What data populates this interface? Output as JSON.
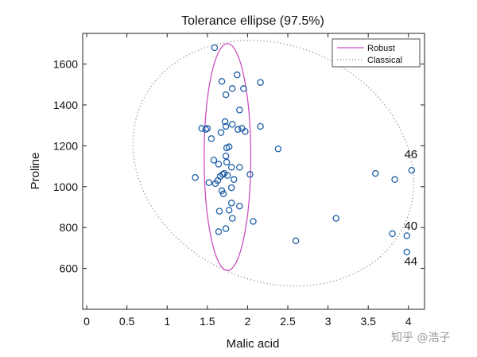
{
  "chart_data": {
    "type": "scatter",
    "title": "Tolerance ellipse (97.5%)",
    "xlabel": "Malic acid",
    "ylabel": "Proline",
    "xlim": [
      -0.05,
      4.2
    ],
    "ylim": [
      400,
      1750
    ],
    "x_ticks": [
      0,
      0.5,
      1,
      1.5,
      2,
      2.5,
      3,
      3.5,
      4
    ],
    "y_ticks": [
      600,
      800,
      1000,
      1200,
      1400,
      1600
    ],
    "x_tick_labels": [
      "0",
      "0.5",
      "1",
      "1.5",
      "2",
      "2.5",
      "3",
      "3.5",
      "4"
    ],
    "y_tick_labels": [
      "600",
      "800",
      "1000",
      "1200",
      "1400",
      "1600"
    ],
    "grid": false,
    "legend_position": "top-right",
    "legend": [
      {
        "label": "Robust",
        "style": "solid",
        "color": "#cc4fbf"
      },
      {
        "label": "Classical",
        "style": "dotted",
        "color": "#888888"
      }
    ],
    "marker_color": "#1f5fa8",
    "points": [
      {
        "x": 1.59,
        "y": 1680
      },
      {
        "x": 1.68,
        "y": 1515
      },
      {
        "x": 1.81,
        "y": 1480
      },
      {
        "x": 1.73,
        "y": 1450
      },
      {
        "x": 1.87,
        "y": 1547
      },
      {
        "x": 1.95,
        "y": 1480
      },
      {
        "x": 2.16,
        "y": 1510
      },
      {
        "x": 1.9,
        "y": 1375
      },
      {
        "x": 1.43,
        "y": 1285
      },
      {
        "x": 1.48,
        "y": 1280
      },
      {
        "x": 1.5,
        "y": 1285
      },
      {
        "x": 1.55,
        "y": 1235
      },
      {
        "x": 1.67,
        "y": 1265
      },
      {
        "x": 1.73,
        "y": 1295
      },
      {
        "x": 1.72,
        "y": 1318
      },
      {
        "x": 1.81,
        "y": 1305
      },
      {
        "x": 1.88,
        "y": 1280
      },
      {
        "x": 1.93,
        "y": 1285
      },
      {
        "x": 1.97,
        "y": 1270
      },
      {
        "x": 2.16,
        "y": 1295
      },
      {
        "x": 1.74,
        "y": 1190
      },
      {
        "x": 1.77,
        "y": 1195
      },
      {
        "x": 2.38,
        "y": 1185
      },
      {
        "x": 1.73,
        "y": 1150
      },
      {
        "x": 1.58,
        "y": 1130
      },
      {
        "x": 1.64,
        "y": 1110
      },
      {
        "x": 1.74,
        "y": 1120
      },
      {
        "x": 1.8,
        "y": 1095
      },
      {
        "x": 1.9,
        "y": 1095
      },
      {
        "x": 2.03,
        "y": 1060
      },
      {
        "x": 1.35,
        "y": 1045
      },
      {
        "x": 1.52,
        "y": 1020
      },
      {
        "x": 1.63,
        "y": 1030
      },
      {
        "x": 1.66,
        "y": 1050
      },
      {
        "x": 1.69,
        "y": 1060
      },
      {
        "x": 1.71,
        "y": 1065
      },
      {
        "x": 1.75,
        "y": 1055
      },
      {
        "x": 1.83,
        "y": 1035
      },
      {
        "x": 1.6,
        "y": 1015
      },
      {
        "x": 1.68,
        "y": 980
      },
      {
        "x": 1.7,
        "y": 965
      },
      {
        "x": 1.8,
        "y": 995
      },
      {
        "x": 1.8,
        "y": 920
      },
      {
        "x": 1.9,
        "y": 905
      },
      {
        "x": 1.65,
        "y": 880
      },
      {
        "x": 1.77,
        "y": 885
      },
      {
        "x": 1.81,
        "y": 845
      },
      {
        "x": 2.07,
        "y": 830
      },
      {
        "x": 1.64,
        "y": 780
      },
      {
        "x": 1.73,
        "y": 795
      },
      {
        "x": 2.6,
        "y": 735
      },
      {
        "x": 3.1,
        "y": 845
      },
      {
        "x": 3.59,
        "y": 1065
      },
      {
        "x": 3.83,
        "y": 1035
      },
      {
        "x": 4.04,
        "y": 1080
      },
      {
        "x": 3.8,
        "y": 770
      },
      {
        "x": 3.98,
        "y": 760
      },
      {
        "x": 3.98,
        "y": 680
      }
    ],
    "ellipses": [
      {
        "name": "Robust",
        "cx": 1.75,
        "cy": 1145,
        "rx": 0.29,
        "ry": 555,
        "rotation_deg": 0
      },
      {
        "name": "Classical",
        "cx": 2.32,
        "cy": 1115,
        "rx": 1.8,
        "ry": 575,
        "rotation_deg": 25
      }
    ],
    "annotations": [
      {
        "text": "46",
        "x": 4.03,
        "y": 1140
      },
      {
        "text": "40",
        "x": 4.03,
        "y": 790
      },
      {
        "text": "44",
        "x": 4.03,
        "y": 615
      }
    ]
  },
  "watermark": "知乎 @浩子"
}
